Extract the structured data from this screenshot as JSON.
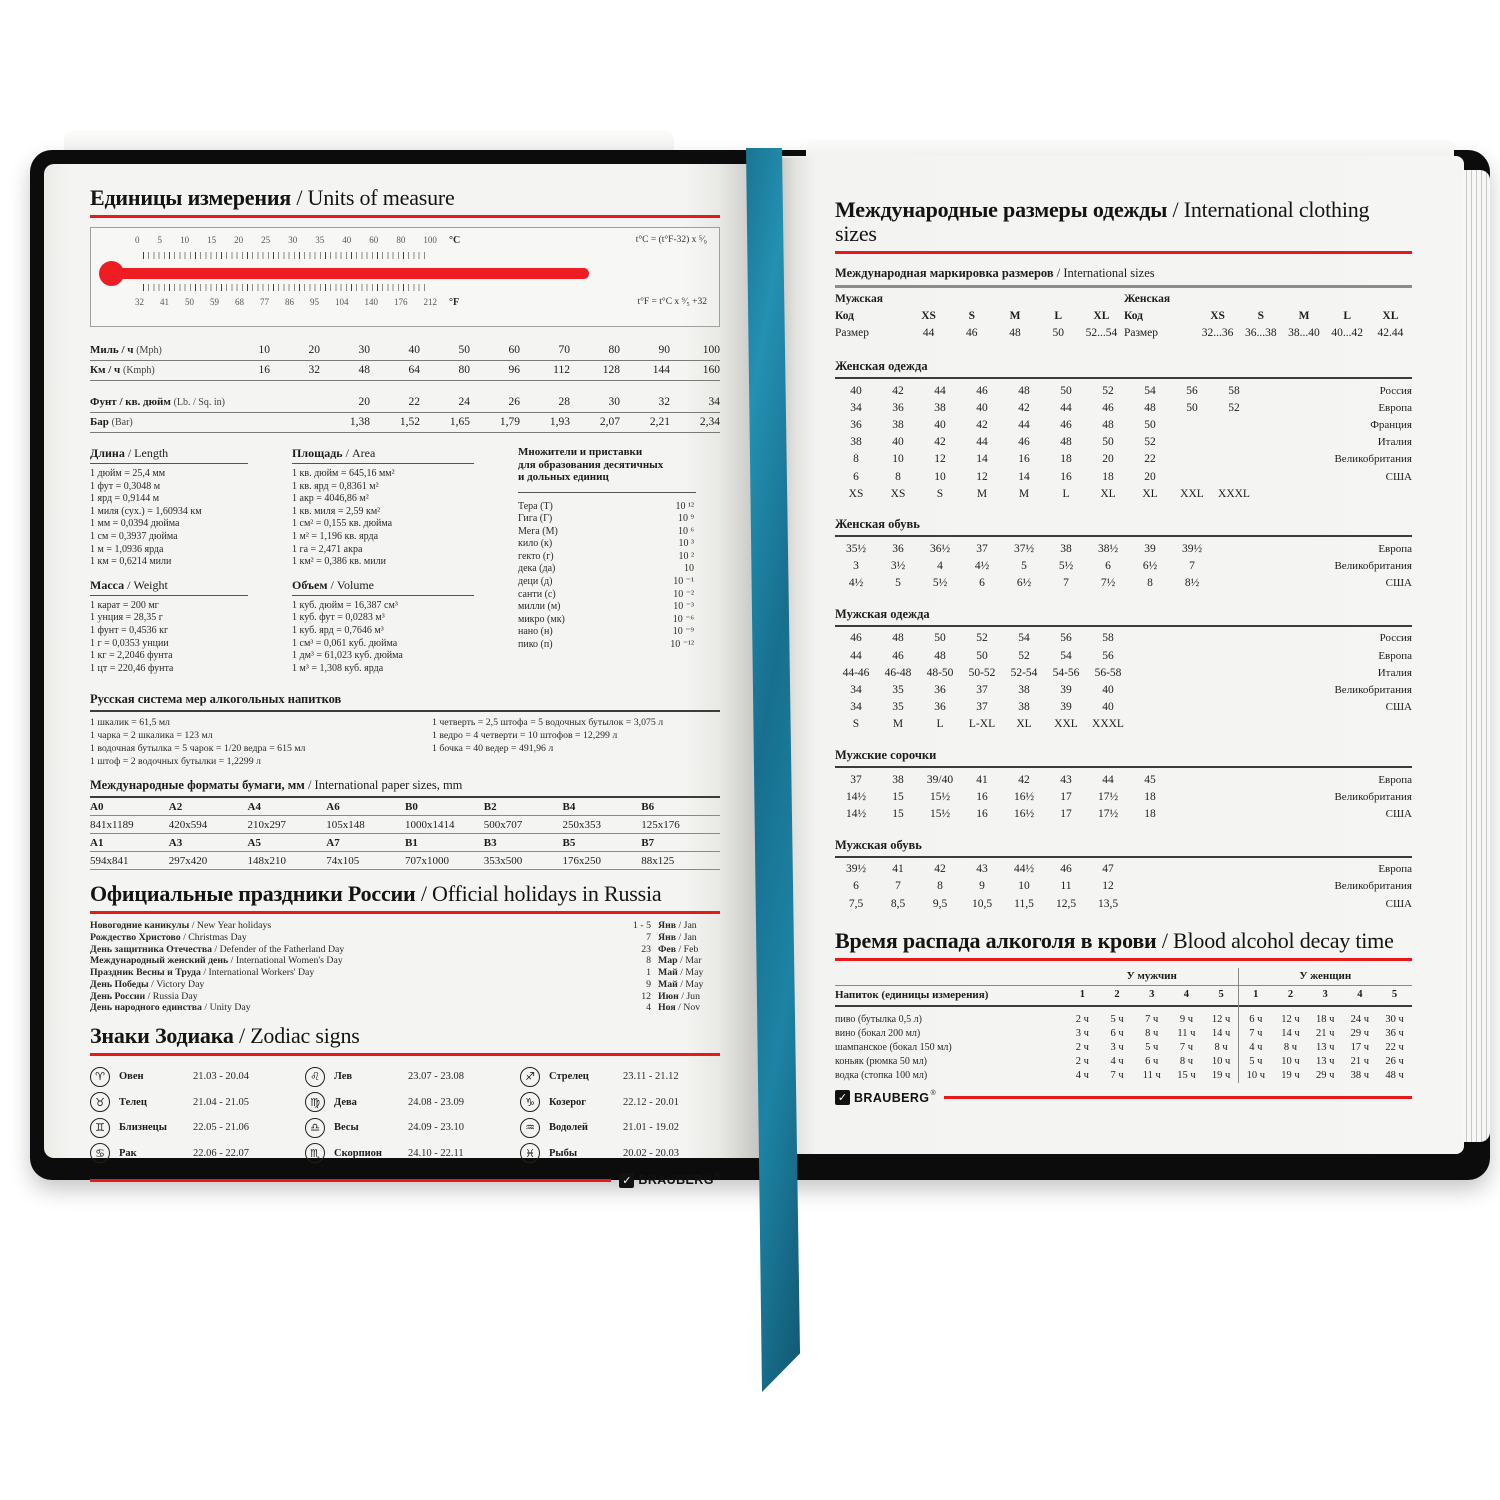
{
  "brand": {
    "name": "BRAUBERG",
    "reg": "®",
    "check_icon": "✓",
    "accent_red": "#e8181b",
    "ribbon_teal": "#1d7d9f"
  },
  "left_page": {
    "title_ru": "Единицы измерения",
    "title_en": "/ Units of measure",
    "thermometer": {
      "c_labels": [
        "0",
        "5",
        "10",
        "15",
        "20",
        "25",
        "30",
        "35",
        "40",
        "60",
        "80",
        "100"
      ],
      "c_unit": "°C",
      "c_formula": "t°C = (t°F-32) x ⁵⁄₉",
      "f_labels": [
        "32",
        "41",
        "50",
        "59",
        "68",
        "77",
        "86",
        "95",
        "104",
        "140",
        "176",
        "212"
      ],
      "f_unit": "°F",
      "f_formula": "t°F = t°C x ⁹⁄₅ +32"
    },
    "speed_table": {
      "rows": [
        {
          "label": "Миль / ч",
          "note": "(Mph)",
          "values": [
            "10",
            "20",
            "30",
            "40",
            "50",
            "60",
            "70",
            "80",
            "90",
            "100"
          ]
        },
        {
          "label": "Км / ч",
          "note": "(Kmph)",
          "values": [
            "16",
            "32",
            "48",
            "64",
            "80",
            "96",
            "112",
            "128",
            "144",
            "160"
          ]
        }
      ]
    },
    "pressure_table": {
      "rows": [
        {
          "label": "Фунт / кв. дюйм",
          "note": "(Lb. / Sq. in)",
          "values": [
            "20",
            "22",
            "24",
            "26",
            "28",
            "30",
            "32",
            "34"
          ]
        },
        {
          "label": "Бар",
          "note": "(Bar)",
          "values": [
            "1,38",
            "1,52",
            "1,65",
            "1,79",
            "1,93",
            "2,07",
            "2,21",
            "2,34"
          ]
        }
      ]
    },
    "conversions": [
      {
        "title_ru": "Длина",
        "title_en": "/ Length",
        "items": [
          "1 дюйм = 25,4 мм",
          "1 фут = 0,3048 м",
          "1 ярд = 0,9144 м",
          "1 миля (сух.) = 1,60934 км",
          "1 мм = 0,0394 дюйма",
          "1 см = 0,3937 дюйма",
          "1 м = 1,0936 ярда",
          "1 км = 0,6214 мили"
        ]
      },
      {
        "title_ru": "Площадь",
        "title_en": "/ Area",
        "items": [
          "1 кв. дюйм = 645,16 мм²",
          "1 кв. ярд = 0,8361 м²",
          "1 акр = 4046,86 м²",
          "1 кв. миля = 2,59 км²",
          "1 см² = 0,155 кв. дюйма",
          "1 м² = 1,196 кв. ярда",
          "1 га = 2,471 акра",
          "1 км² = 0,386 кв. мили"
        ]
      },
      {
        "title_ru": "Масса",
        "title_en": "/ Weight",
        "items": [
          "1 карат = 200 мг",
          "1 унция = 28,35 г",
          "1 фунт = 0,4536 кг",
          "1 г = 0,0353 унции",
          "1 кг = 2,2046 фунта",
          "1 цт = 220,46 фунта"
        ]
      },
      {
        "title_ru": "Объем",
        "title_en": "/ Volume",
        "items": [
          "1 куб. дюйм = 16,387 см³",
          "1 куб. фут = 0,0283 м³",
          "1 куб. ярд = 0,7646 м³",
          "1 см³ = 0,061 куб. дюйма",
          "1 дм³ = 61,023 куб. дюйма",
          "1 м³ = 1,308 куб. ярда"
        ]
      }
    ],
    "prefixes": {
      "title_lines": [
        "Множители и приставки",
        "для образования десятичных",
        "и дольных единиц"
      ],
      "items": [
        {
          "name": "Тера (Т)",
          "value": "10 ¹²"
        },
        {
          "name": "Гига (Г)",
          "value": "10 ⁹"
        },
        {
          "name": "Мега (М)",
          "value": "10 ⁶"
        },
        {
          "name": "кило (к)",
          "value": "10 ³"
        },
        {
          "name": "гекто (г)",
          "value": "10 ²"
        },
        {
          "name": "дека (да)",
          "value": "10"
        },
        {
          "name": "деци (д)",
          "value": "10 ⁻¹"
        },
        {
          "name": "санти (с)",
          "value": "10 ⁻²"
        },
        {
          "name": "милли (м)",
          "value": "10 ⁻³"
        },
        {
          "name": "микро (мк)",
          "value": "10 ⁻⁶"
        },
        {
          "name": "нано (н)",
          "value": "10 ⁻⁹"
        },
        {
          "name": "пико (п)",
          "value": "10 ⁻¹²"
        }
      ]
    },
    "alcohol_measures": {
      "title": "Русская система мер алкогольных напитков",
      "col1": [
        "1 шкалик = 61,5 мл",
        "1 чарка = 2 шкалика = 123 мл",
        "1 водочная бутылка = 5 чарок = 1/20 ведра = 615 мл",
        "1 штоф = 2 водочных бутылки = 1,2299 л"
      ],
      "col2": [
        "1 четверть = 2,5 штофа = 5 водочных бутылок = 3,075 л",
        "1 ведро = 4 четверти = 10 штофов = 12,299 л",
        "1 бочка = 40 ведер = 491,96 л"
      ]
    },
    "paper_sizes": {
      "title_ru": "Международные форматы бумаги, мм",
      "title_en": "/ International paper sizes, mm",
      "header1": [
        "A0",
        "A2",
        "A4",
        "A6",
        "B0",
        "B2",
        "B4",
        "B6"
      ],
      "values1": [
        "841x1189",
        "420x594",
        "210x297",
        "105x148",
        "1000x1414",
        "500x707",
        "250x353",
        "125x176"
      ],
      "header2": [
        "A1",
        "A3",
        "A5",
        "A7",
        "B1",
        "B3",
        "B5",
        "B7"
      ],
      "values2": [
        "594x841",
        "297x420",
        "148x210",
        "74x105",
        "707x1000",
        "353x500",
        "176x250",
        "88x125"
      ]
    },
    "holidays": {
      "title_ru": "Официальные праздники России",
      "title_en": "/ Official holidays in Russia",
      "rows": [
        {
          "ru": "Новогодние каникулы",
          "en": "/ New Year holidays",
          "day": "1 - 5",
          "m_ru": "Янв",
          "m_en": "/ Jan"
        },
        {
          "ru": "Рождество Христово",
          "en": "/ Christmas Day",
          "day": "7",
          "m_ru": "Янв",
          "m_en": "/ Jan"
        },
        {
          "ru": "День защитника Отечества",
          "en": "/ Defender of the Fatherland Day",
          "day": "23",
          "m_ru": "Фев",
          "m_en": "/ Feb"
        },
        {
          "ru": "Международный женский день",
          "en": "/ International Women's Day",
          "day": "8",
          "m_ru": "Мар",
          "m_en": "/ Mar"
        },
        {
          "ru": "Праздник Весны и Труда",
          "en": "/ International Workers' Day",
          "day": "1",
          "m_ru": "Май",
          "m_en": "/ May"
        },
        {
          "ru": "День Победы",
          "en": "/ Victory Day",
          "day": "9",
          "m_ru": "Май",
          "m_en": "/ May"
        },
        {
          "ru": "День России",
          "en": "/ Russia Day",
          "day": "12",
          "m_ru": "Июн",
          "m_en": "/ Jun"
        },
        {
          "ru": "День народного единства",
          "en": "/ Unity Day",
          "day": "4",
          "m_ru": "Ноя",
          "m_en": "/ Nov"
        }
      ]
    },
    "zodiac": {
      "title_ru": "Знаки Зодиака",
      "title_en": "/ Zodiac signs",
      "columns": [
        [
          {
            "symbol": "♈",
            "name": "Овен",
            "dates": "21.03 - 20.04"
          },
          {
            "symbol": "♉",
            "name": "Телец",
            "dates": "21.04 - 21.05"
          },
          {
            "symbol": "♊",
            "name": "Близнецы",
            "dates": "22.05 - 21.06"
          },
          {
            "symbol": "♋",
            "name": "Рак",
            "dates": "22.06 - 22.07"
          }
        ],
        [
          {
            "symbol": "♌",
            "name": "Лев",
            "dates": "23.07 - 23.08"
          },
          {
            "symbol": "♍",
            "name": "Дева",
            "dates": "24.08 - 23.09"
          },
          {
            "symbol": "♎",
            "name": "Весы",
            "dates": "24.09 - 23.10"
          },
          {
            "symbol": "♏",
            "name": "Скорпион",
            "dates": "24.10 - 22.11"
          }
        ],
        [
          {
            "symbol": "♐",
            "name": "Стрелец",
            "dates": "23.11 - 21.12"
          },
          {
            "symbol": "♑",
            "name": "Козерог",
            "dates": "22.12 - 20.01"
          },
          {
            "symbol": "♒",
            "name": "Водолей",
            "dates": "21.01 - 19.02"
          },
          {
            "symbol": "♓",
            "name": "Рыбы",
            "dates": "20.02 - 20.03"
          }
        ]
      ]
    }
  },
  "right_page": {
    "title_ru": "Международные размеры одежды",
    "title_en": "/ International clothing sizes",
    "marking": {
      "title_ru": "Международная маркировка размеров",
      "title_en": "/ International sizes",
      "code_label": "Код",
      "size_label": "Размер",
      "men": {
        "label": "Мужская",
        "codes": [
          "XS",
          "S",
          "M",
          "L",
          "XL"
        ],
        "sizes": [
          "44",
          "46",
          "48",
          "50",
          "52...54"
        ]
      },
      "women": {
        "label": "Женская",
        "codes": [
          "XS",
          "S",
          "M",
          "L",
          "XL"
        ],
        "sizes": [
          "32...36",
          "36...38",
          "38...40",
          "40...42",
          "42.44"
        ]
      }
    },
    "size_tables": [
      {
        "title": "Женская одежда",
        "cols": 10,
        "rows": [
          [
            "40",
            "42",
            "44",
            "46",
            "48",
            "50",
            "52",
            "54",
            "56",
            "58",
            "Россия"
          ],
          [
            "34",
            "36",
            "38",
            "40",
            "42",
            "44",
            "46",
            "48",
            "50",
            "52",
            "Европа"
          ],
          [
            "36",
            "38",
            "40",
            "42",
            "44",
            "46",
            "48",
            "50",
            "",
            "",
            "Франция"
          ],
          [
            "38",
            "40",
            "42",
            "44",
            "46",
            "48",
            "50",
            "52",
            "",
            "",
            "Италия"
          ],
          [
            "8",
            "10",
            "12",
            "14",
            "16",
            "18",
            "20",
            "22",
            "",
            "",
            "Великобритания"
          ],
          [
            "6",
            "8",
            "10",
            "12",
            "14",
            "16",
            "18",
            "20",
            "",
            "",
            "США"
          ],
          [
            "XS",
            "XS",
            "S",
            "M",
            "M",
            "L",
            "XL",
            "XL",
            "XXL",
            "XXXL",
            ""
          ]
        ]
      },
      {
        "title": "Женская обувь",
        "cols": 9,
        "rows": [
          [
            "35½",
            "36",
            "36½",
            "37",
            "37½",
            "38",
            "38½",
            "39",
            "39½",
            "Европа"
          ],
          [
            "3",
            "3½",
            "4",
            "4½",
            "5",
            "5½",
            "6",
            "6½",
            "7",
            "Великобритания"
          ],
          [
            "4½",
            "5",
            "5½",
            "6",
            "6½",
            "7",
            "7½",
            "8",
            "8½",
            "США"
          ]
        ]
      },
      {
        "title": "Мужская одежда",
        "cols": 7,
        "rows": [
          [
            "46",
            "48",
            "50",
            "52",
            "54",
            "56",
            "58",
            "Россия"
          ],
          [
            "44",
            "46",
            "48",
            "50",
            "52",
            "54",
            "56",
            "Европа"
          ],
          [
            "44-46",
            "46-48",
            "48-50",
            "50-52",
            "52-54",
            "54-56",
            "56-58",
            "Италия"
          ],
          [
            "34",
            "35",
            "36",
            "37",
            "38",
            "39",
            "40",
            "Великобритания"
          ],
          [
            "34",
            "35",
            "36",
            "37",
            "38",
            "39",
            "40",
            "США"
          ],
          [
            "S",
            "M",
            "L",
            "L-XL",
            "XL",
            "XXL",
            "XXXL",
            ""
          ]
        ]
      },
      {
        "title": "Мужские сорочки",
        "cols": 8,
        "rows": [
          [
            "37",
            "38",
            "39/40",
            "41",
            "42",
            "43",
            "44",
            "45",
            "Европа"
          ],
          [
            "14½",
            "15",
            "15½",
            "16",
            "16½",
            "17",
            "17½",
            "18",
            "Великобритания"
          ],
          [
            "14½",
            "15",
            "15½",
            "16",
            "16½",
            "17",
            "17½",
            "18",
            "США"
          ]
        ]
      },
      {
        "title": "Мужская обувь",
        "cols": 7,
        "rows": [
          [
            "39½",
            "41",
            "42",
            "43",
            "44½",
            "46",
            "47",
            "Европа"
          ],
          [
            "6",
            "7",
            "8",
            "9",
            "10",
            "11",
            "12",
            "Великобритания"
          ],
          [
            "7,5",
            "8,5",
            "9,5",
            "10,5",
            "11,5",
            "12,5",
            "13,5",
            "США"
          ]
        ]
      }
    ],
    "alcohol_decay": {
      "title_ru": "Время распада алкоголя в крови",
      "title_en": "/ Blood alcohol decay time",
      "men_label": "У мужчин",
      "women_label": "У женщин",
      "drink_label": "Напиток (единицы измерения)",
      "count_headers": [
        "1",
        "2",
        "3",
        "4",
        "5"
      ],
      "rows": [
        {
          "name": "пиво (бутылка 0,5 л)",
          "men": [
            "2 ч",
            "5 ч",
            "7 ч",
            "9 ч",
            "12 ч"
          ],
          "women": [
            "6 ч",
            "12 ч",
            "18 ч",
            "24 ч",
            "30 ч"
          ]
        },
        {
          "name": "вино (бокал 200 мл)",
          "men": [
            "3 ч",
            "6 ч",
            "8 ч",
            "11 ч",
            "14 ч"
          ],
          "women": [
            "7 ч",
            "14 ч",
            "21 ч",
            "29 ч",
            "36 ч"
          ]
        },
        {
          "name": "шампанское (бокал 150 мл)",
          "men": [
            "2 ч",
            "3 ч",
            "5 ч",
            "7 ч",
            "8 ч"
          ],
          "women": [
            "4 ч",
            "8 ч",
            "13 ч",
            "17 ч",
            "22 ч"
          ]
        },
        {
          "name": "коньяк (рюмка 50 мл)",
          "men": [
            "2 ч",
            "4 ч",
            "6 ч",
            "8 ч",
            "10 ч"
          ],
          "women": [
            "5 ч",
            "10 ч",
            "13 ч",
            "21 ч",
            "26 ч"
          ]
        },
        {
          "name": "водка (стопка 100 мл)",
          "men": [
            "4 ч",
            "7 ч",
            "11 ч",
            "15 ч",
            "19 ч"
          ],
          "women": [
            "10 ч",
            "19 ч",
            "29 ч",
            "38 ч",
            "48 ч"
          ]
        }
      ]
    }
  }
}
